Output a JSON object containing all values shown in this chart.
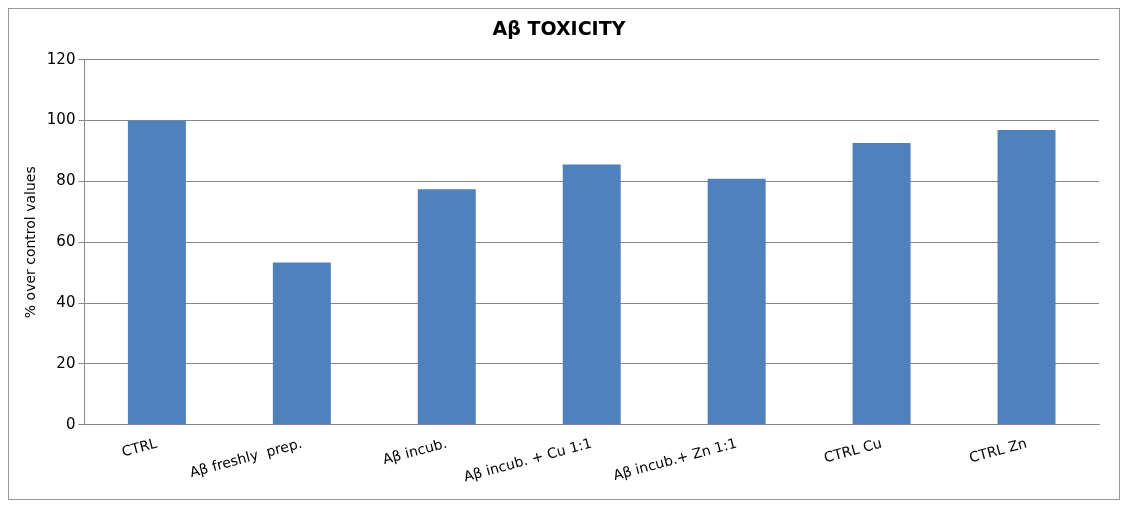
{
  "chart_data": {
    "type": "bar",
    "title": "Aβ TOXICITY",
    "ylabel": "% over control values",
    "categories": [
      "CTRL",
      "Aβ freshly  prep.",
      "Aβ incub.",
      "Aβ incub. + Cu 1:1",
      "Aβ incub.+ Zn 1:1",
      "CTRL Cu",
      "CTRL Zn"
    ],
    "values": [
      100,
      53.3,
      77.4,
      85.6,
      80.9,
      92.6,
      96.9
    ],
    "color": "#4f81bd",
    "ylim": [
      0,
      120
    ],
    "yticks": [
      0,
      20,
      40,
      60,
      80,
      100,
      120
    ],
    "grid": "y",
    "legend": false
  }
}
